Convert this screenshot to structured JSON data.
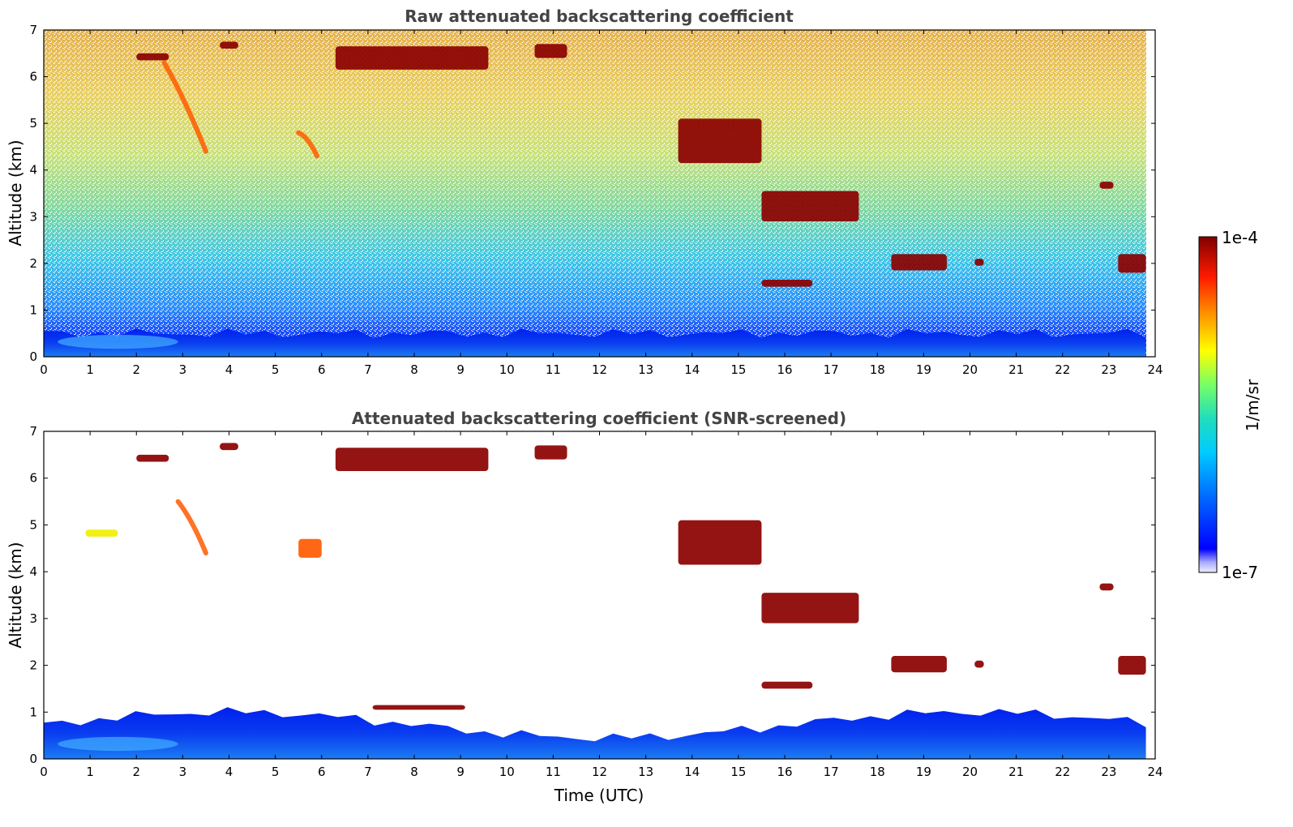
{
  "chart_data": [
    {
      "type": "heatmap",
      "title": "Raw attenuated backscattering coefficient",
      "xlabel": "",
      "ylabel": "Altitude (km)",
      "xlim": [
        0,
        24
      ],
      "ylim": [
        0,
        7
      ],
      "x_ticks": [
        "0",
        "1",
        "2",
        "3",
        "4",
        "5",
        "6",
        "7",
        "8",
        "9",
        "10",
        "11",
        "12",
        "13",
        "14",
        "15",
        "16",
        "17",
        "18",
        "19",
        "20",
        "21",
        "22",
        "23",
        "24"
      ],
      "y_ticks": [
        "0",
        "1",
        "2",
        "3",
        "4",
        "5",
        "6",
        "7"
      ],
      "data_end_time": 23.8,
      "features": [
        {
          "kind": "boundary_layer",
          "x": [
            0,
            23.8
          ],
          "top_km": 0.5,
          "value": "1e-6"
        },
        {
          "kind": "noise",
          "description_scale": "increasing with altitude"
        },
        {
          "kind": "cloud",
          "x": [
            2.0,
            2.7
          ],
          "y": [
            6.35,
            6.5
          ],
          "value": "1e-4"
        },
        {
          "kind": "cloud",
          "x": [
            3.8,
            4.2
          ],
          "y": [
            6.6,
            6.75
          ],
          "value": "1e-4"
        },
        {
          "kind": "cloud",
          "x": [
            6.3,
            9.6
          ],
          "y": [
            6.15,
            6.65
          ],
          "value": "1e-4"
        },
        {
          "kind": "cloud",
          "x": [
            10.6,
            11.3
          ],
          "y": [
            6.4,
            6.7
          ],
          "value": "1e-4"
        },
        {
          "kind": "virga",
          "x": [
            2.6,
            3.5
          ],
          "y": [
            4.4,
            6.3
          ],
          "value": "5e-5"
        },
        {
          "kind": "virga",
          "x": [
            5.5,
            5.9
          ],
          "y": [
            4.3,
            4.8
          ],
          "value": "5e-5"
        },
        {
          "kind": "cloud",
          "x": [
            13.7,
            15.5
          ],
          "y": [
            4.15,
            5.1
          ],
          "value": "1e-4"
        },
        {
          "kind": "cloud",
          "x": [
            15.5,
            17.6
          ],
          "y": [
            2.9,
            3.55
          ],
          "value": "1e-4"
        },
        {
          "kind": "cloud",
          "x": [
            22.8,
            23.1
          ],
          "y": [
            3.6,
            3.75
          ],
          "value": "1e-4"
        },
        {
          "kind": "cloud",
          "x": [
            18.3,
            19.5
          ],
          "y": [
            1.85,
            2.2
          ],
          "value": "1e-4"
        },
        {
          "kind": "cloud",
          "x": [
            20.1,
            20.3
          ],
          "y": [
            1.95,
            2.1
          ],
          "value": "1e-4"
        },
        {
          "kind": "cloud",
          "x": [
            15.5,
            16.6
          ],
          "y": [
            1.5,
            1.65
          ],
          "value": "1e-4"
        },
        {
          "kind": "cloud",
          "x": [
            23.2,
            23.8
          ],
          "y": [
            1.8,
            2.2
          ],
          "value": "1e-4"
        }
      ]
    },
    {
      "type": "heatmap",
      "title": "Attenuated backscattering coefficient (SNR-screened)",
      "xlabel": "Time (UTC)",
      "ylabel": "Altitude (km)",
      "xlim": [
        0,
        24
      ],
      "ylim": [
        0,
        7
      ],
      "x_ticks": [
        "0",
        "1",
        "2",
        "3",
        "4",
        "5",
        "6",
        "7",
        "8",
        "9",
        "10",
        "11",
        "12",
        "13",
        "14",
        "15",
        "16",
        "17",
        "18",
        "19",
        "20",
        "21",
        "22",
        "23",
        "24"
      ],
      "y_ticks": [
        "0",
        "1",
        "2",
        "3",
        "4",
        "5",
        "6",
        "7"
      ],
      "data_end_time": 23.8,
      "features": [
        {
          "kind": "boundary_layer",
          "x": [
            0,
            23.8
          ],
          "top_km": [
            0.45,
            1.0
          ],
          "value": "1e-6"
        },
        {
          "kind": "cloud",
          "x": [
            2.0,
            2.7
          ],
          "y": [
            6.35,
            6.5
          ],
          "value": "1e-4"
        },
        {
          "kind": "cloud",
          "x": [
            3.8,
            4.2
          ],
          "y": [
            6.6,
            6.75
          ],
          "value": "1e-4"
        },
        {
          "kind": "cloud",
          "x": [
            6.3,
            9.6
          ],
          "y": [
            6.15,
            6.65
          ],
          "value": "1e-4"
        },
        {
          "kind": "cloud",
          "x": [
            10.6,
            11.3
          ],
          "y": [
            6.4,
            6.7
          ],
          "value": "1e-4"
        },
        {
          "kind": "virga",
          "x": [
            2.9,
            3.5
          ],
          "y": [
            4.4,
            5.5
          ],
          "value": "5e-5"
        },
        {
          "kind": "cloud",
          "x": [
            0.9,
            1.6
          ],
          "y": [
            4.75,
            4.9
          ],
          "value": "2e-5"
        },
        {
          "kind": "cloud",
          "x": [
            5.5,
            6.0
          ],
          "y": [
            4.3,
            4.7
          ],
          "value": "5e-5"
        },
        {
          "kind": "cloud",
          "x": [
            13.7,
            15.5
          ],
          "y": [
            4.15,
            5.1
          ],
          "value": "1e-4"
        },
        {
          "kind": "cloud",
          "x": [
            15.5,
            17.6
          ],
          "y": [
            2.9,
            3.55
          ],
          "value": "1e-4"
        },
        {
          "kind": "cloud",
          "x": [
            22.8,
            23.1
          ],
          "y": [
            3.6,
            3.75
          ],
          "value": "1e-4"
        },
        {
          "kind": "cloud",
          "x": [
            18.3,
            19.5
          ],
          "y": [
            1.85,
            2.2
          ],
          "value": "1e-4"
        },
        {
          "kind": "cloud",
          "x": [
            20.1,
            20.3
          ],
          "y": [
            1.95,
            2.1
          ],
          "value": "1e-4"
        },
        {
          "kind": "cloud",
          "x": [
            15.5,
            16.6
          ],
          "y": [
            1.5,
            1.65
          ],
          "value": "1e-4"
        },
        {
          "kind": "cloud",
          "x": [
            23.2,
            23.8
          ],
          "y": [
            1.8,
            2.2
          ],
          "value": "1e-4"
        },
        {
          "kind": "cloud",
          "x": [
            7.1,
            9.1
          ],
          "y": [
            1.05,
            1.15
          ],
          "value": "1e-4"
        }
      ]
    }
  ],
  "colorbar": {
    "min_label": "1e-7",
    "max_label": "1e-4",
    "label": "1/m/sr",
    "scale": "log",
    "colormap": "jet",
    "colors": [
      "#eeeeff",
      "#0000ff",
      "#00ffff",
      "#ffff00",
      "#ff0000",
      "#800000"
    ]
  }
}
